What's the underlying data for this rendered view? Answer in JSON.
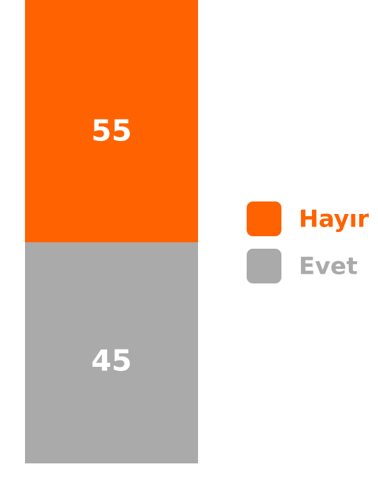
{
  "chart_data": {
    "type": "bar",
    "stacked": true,
    "series": [
      {
        "name": "Evet",
        "color": "#aaaaaa",
        "values": [
          45
        ]
      },
      {
        "name": "Hayır",
        "color": "#ff6200",
        "values": [
          55
        ]
      }
    ],
    "ylim": [
      0,
      100
    ],
    "legend": "right"
  }
}
